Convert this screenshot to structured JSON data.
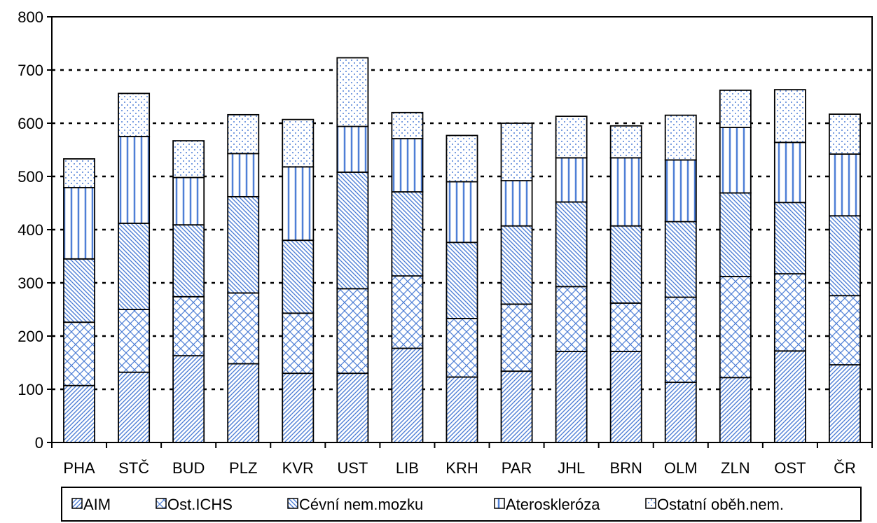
{
  "chart_data": {
    "type": "bar",
    "stacked": true,
    "title": "",
    "xlabel": "",
    "ylabel": "",
    "ylim": [
      0,
      800
    ],
    "yticks": [
      0,
      100,
      200,
      300,
      400,
      500,
      600,
      700,
      800
    ],
    "grid": "horizontal dashed",
    "legend_position": "bottom",
    "categories": [
      "PHA",
      "STČ",
      "BUD",
      "PLZ",
      "KVR",
      "UST",
      "LIB",
      "KRH",
      "PAR",
      "JHL",
      "BRN",
      "OLM",
      "ZLN",
      "OST",
      "ČR"
    ],
    "series": [
      {
        "name": "AIM",
        "pattern": "diagonal",
        "values": [
          107,
          132,
          163,
          148,
          130,
          130,
          177,
          123,
          134,
          171,
          171,
          113,
          122,
          172,
          146
        ]
      },
      {
        "name": "Ost.ICHS",
        "pattern": "crosshatch",
        "values": [
          119,
          118,
          111,
          133,
          113,
          159,
          136,
          110,
          126,
          122,
          91,
          160,
          190,
          145,
          130
        ]
      },
      {
        "name": "Cévní nem.mozku",
        "pattern": "backdiagonal",
        "values": [
          119,
          162,
          135,
          181,
          137,
          219,
          158,
          143,
          147,
          159,
          145,
          142,
          157,
          134,
          150
        ]
      },
      {
        "name": "Ateroskleróza",
        "pattern": "vertical",
        "values": [
          134,
          163,
          89,
          81,
          138,
          86,
          100,
          114,
          85,
          83,
          128,
          116,
          123,
          113,
          116
        ]
      },
      {
        "name": "Ostatní oběh.nem.",
        "pattern": "dots",
        "values": [
          54,
          81,
          69,
          73,
          89,
          129,
          49,
          87,
          108,
          78,
          60,
          84,
          70,
          99,
          75
        ]
      }
    ],
    "colors": {
      "pattern": "#4f7fd6",
      "outline": "#000000",
      "grid": "#000000"
    }
  }
}
